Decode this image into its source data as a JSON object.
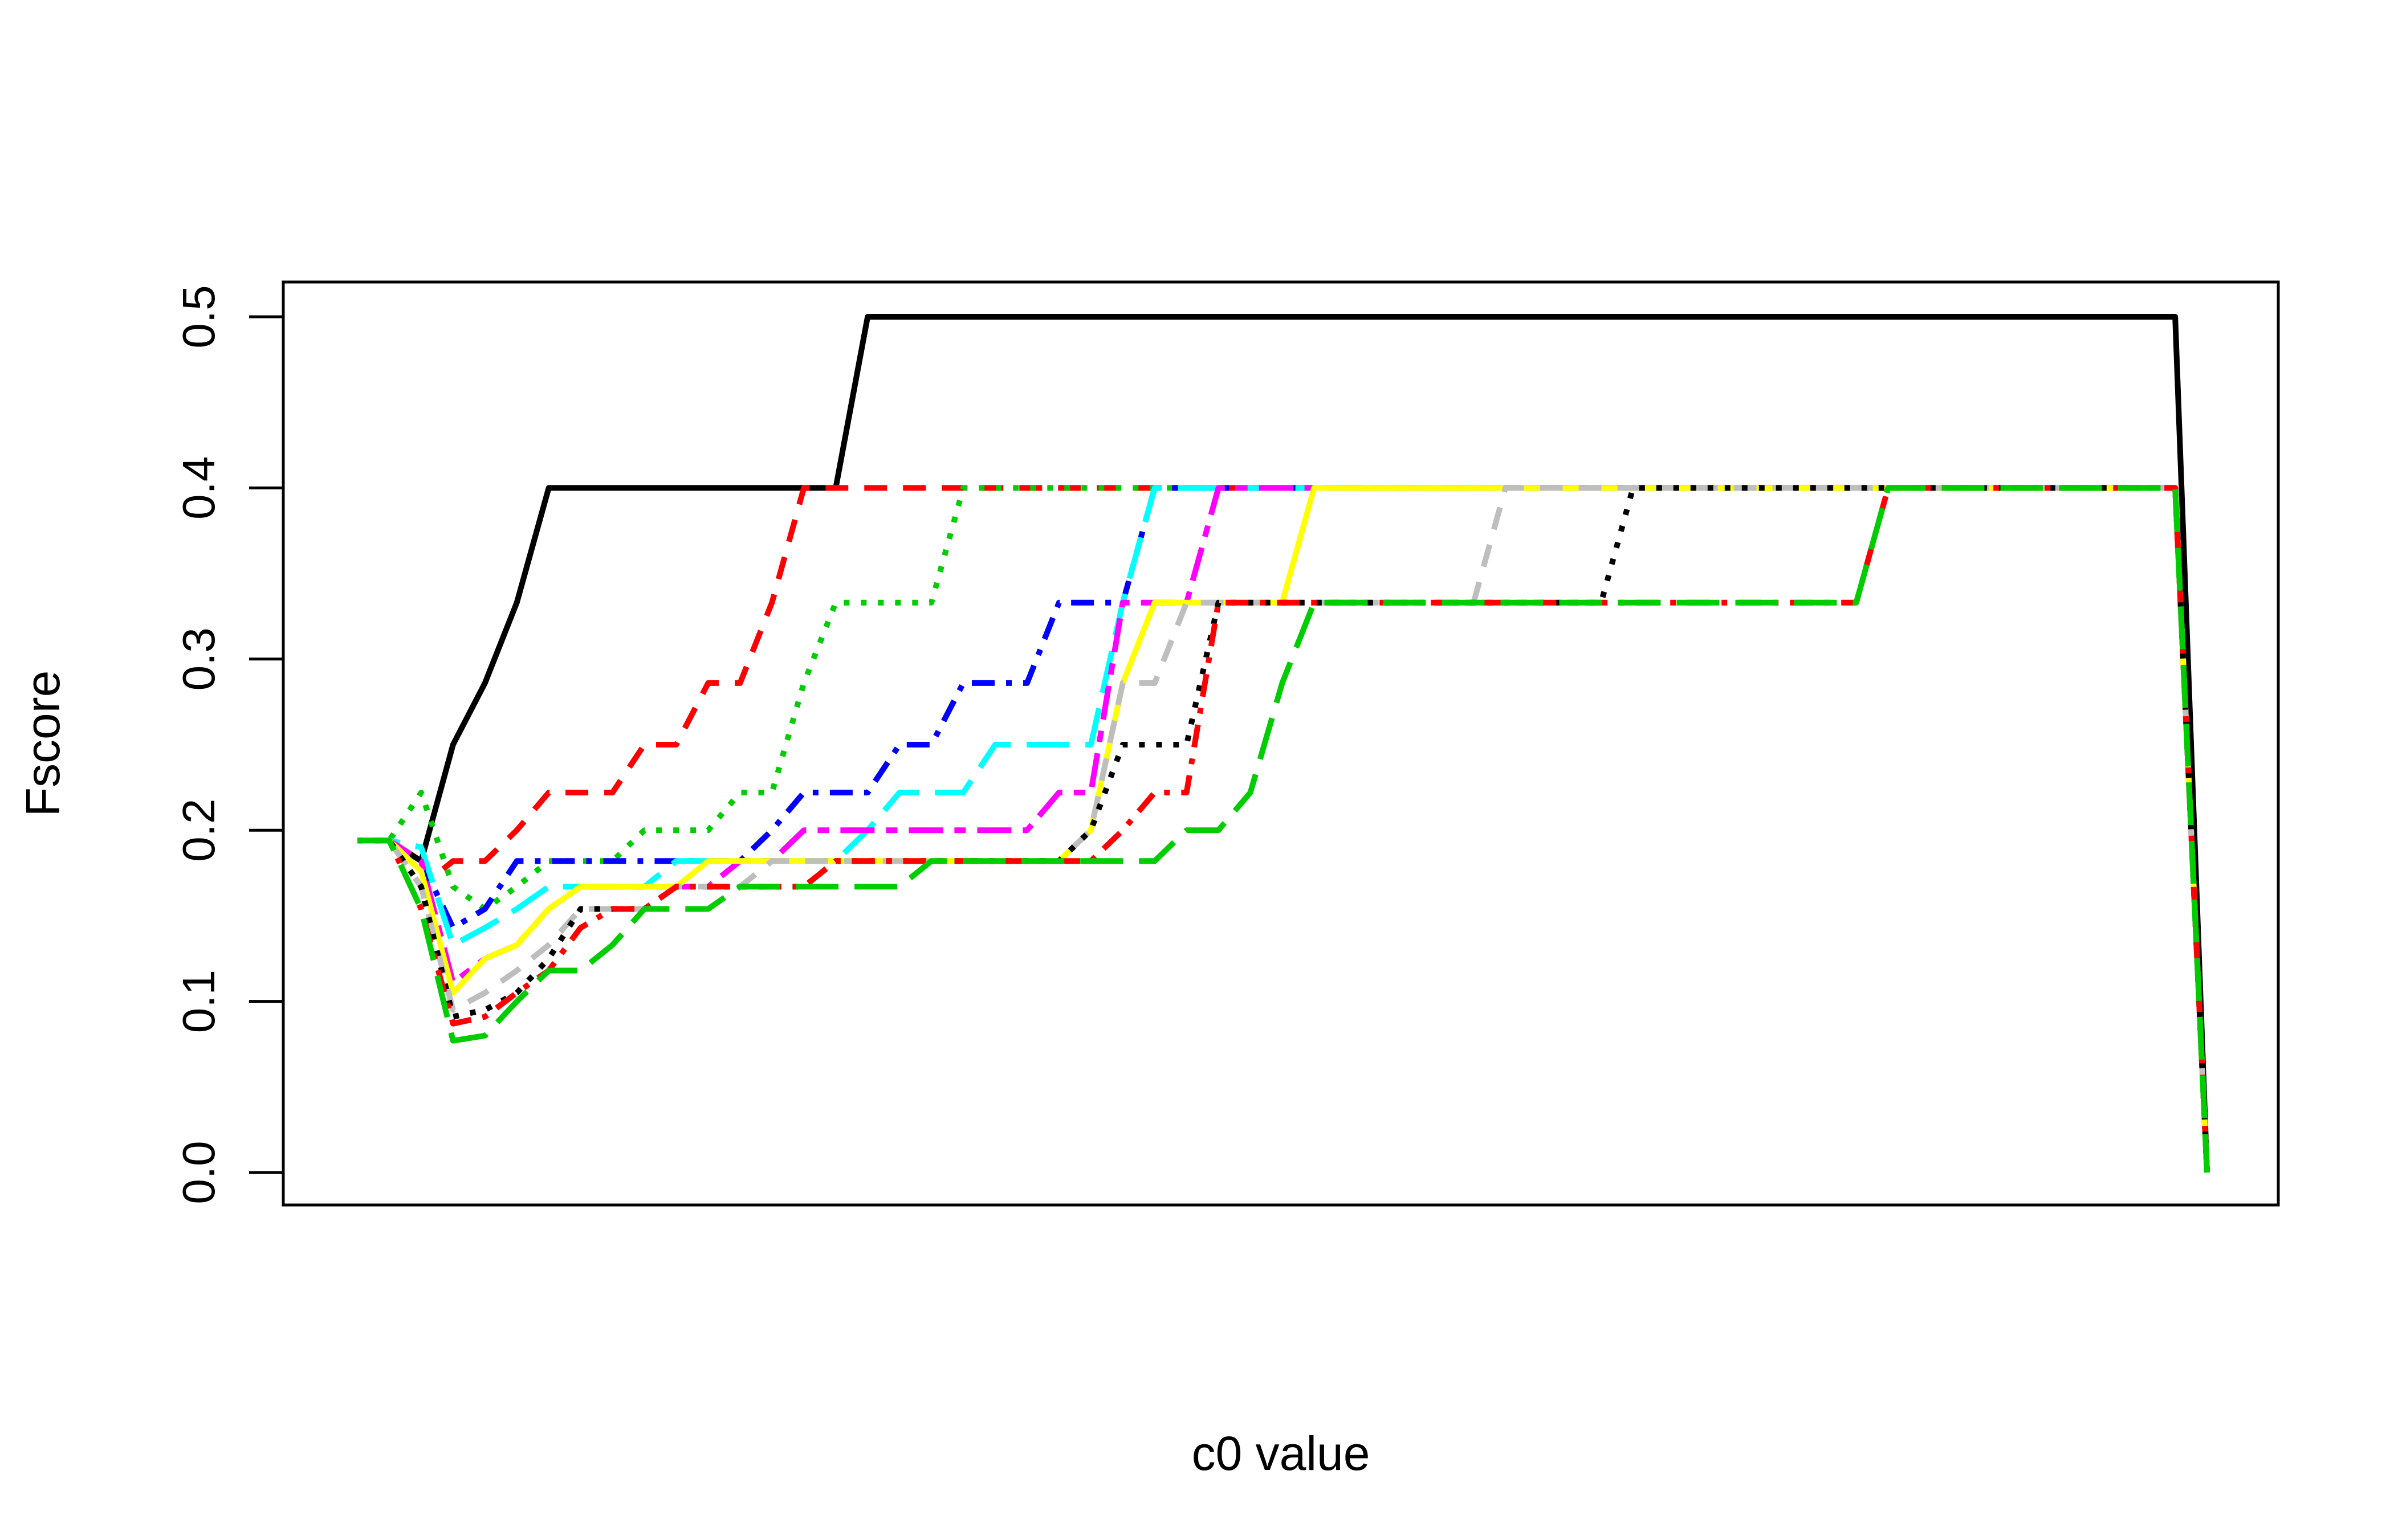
{
  "chart_data": {
    "type": "line",
    "title": "",
    "xlabel": "c0 value",
    "ylabel": "Fscore",
    "ylim": [
      0,
      0.5
    ],
    "yticks": [
      "0.0",
      "0.1",
      "0.2",
      "0.3",
      "0.4",
      "0.5"
    ],
    "x_tick_labels_shown": false,
    "grid": false,
    "legend": "none",
    "x": [
      1,
      2,
      3,
      4,
      5,
      6,
      7,
      8,
      9,
      10,
      11,
      12,
      13,
      14,
      15,
      16,
      17,
      18,
      19,
      20,
      21,
      22,
      23,
      24,
      25,
      26,
      27,
      28,
      29,
      30,
      31,
      32,
      33,
      34,
      35,
      36,
      37,
      38,
      39,
      40,
      41,
      42,
      43,
      44,
      45,
      46,
      47,
      48,
      49,
      50,
      51,
      52,
      53,
      54,
      55,
      56,
      57,
      58,
      59
    ],
    "series": [
      {
        "color": "#000000",
        "dash": "solid",
        "values": [
          0.194,
          0.194,
          0.182,
          0.25,
          0.286,
          0.333,
          0.4,
          0.4,
          0.4,
          0.4,
          0.4,
          0.4,
          0.4,
          0.4,
          0.4,
          0.4,
          0.5,
          0.5,
          0.5,
          0.5,
          0.5,
          0.5,
          0.5,
          0.5,
          0.5,
          0.5,
          0.5,
          0.5,
          0.5,
          0.5,
          0.5,
          0.5,
          0.5,
          0.5,
          0.5,
          0.5,
          0.5,
          0.5,
          0.5,
          0.5,
          0.5,
          0.5,
          0.5,
          0.5,
          0.5,
          0.5,
          0.5,
          0.5,
          0.5,
          0.5,
          0.5,
          0.5,
          0.5,
          0.5,
          0.5,
          0.5,
          0.5,
          0.5,
          0.0
        ]
      },
      {
        "color": "#ff0000",
        "dash": "dashed",
        "values": [
          0.194,
          0.194,
          0.167,
          0.182,
          0.182,
          0.2,
          0.222,
          0.222,
          0.222,
          0.25,
          0.25,
          0.286,
          0.286,
          0.333,
          0.4,
          0.4,
          0.4,
          0.4,
          0.4,
          0.4,
          0.4,
          0.4,
          0.4,
          0.4,
          0.4,
          0.4,
          0.4,
          0.4,
          0.4,
          0.4,
          0.4,
          0.4,
          0.4,
          0.4,
          0.4,
          0.4,
          0.4,
          0.4,
          0.4,
          0.4,
          0.4,
          0.4,
          0.4,
          0.4,
          0.4,
          0.4,
          0.4,
          0.4,
          0.4,
          0.4,
          0.4,
          0.4,
          0.4,
          0.4,
          0.4,
          0.4,
          0.4,
          0.4,
          0.0
        ]
      },
      {
        "color": "#00cd00",
        "dash": "dotted",
        "values": [
          0.194,
          0.194,
          0.222,
          0.167,
          0.154,
          0.167,
          0.182,
          0.182,
          0.182,
          0.2,
          0.2,
          0.2,
          0.222,
          0.222,
          0.286,
          0.333,
          0.333,
          0.333,
          0.333,
          0.4,
          0.4,
          0.4,
          0.4,
          0.4,
          0.4,
          0.4,
          0.4,
          0.4,
          0.4,
          0.4,
          0.4,
          0.4,
          0.4,
          0.4,
          0.4,
          0.4,
          0.4,
          0.4,
          0.4,
          0.4,
          0.4,
          0.4,
          0.4,
          0.4,
          0.4,
          0.4,
          0.4,
          0.4,
          0.4,
          0.4,
          0.4,
          0.4,
          0.4,
          0.4,
          0.4,
          0.4,
          0.4,
          0.4,
          0.0
        ]
      },
      {
        "color": "#0000ff",
        "dash": "dotdash",
        "values": [
          0.194,
          0.194,
          0.182,
          0.143,
          0.154,
          0.182,
          0.182,
          0.182,
          0.182,
          0.182,
          0.182,
          0.182,
          0.182,
          0.2,
          0.222,
          0.222,
          0.222,
          0.25,
          0.25,
          0.286,
          0.286,
          0.286,
          0.333,
          0.333,
          0.333,
          0.4,
          0.4,
          0.4,
          0.4,
          0.4,
          0.4,
          0.4,
          0.4,
          0.4,
          0.4,
          0.4,
          0.4,
          0.4,
          0.4,
          0.4,
          0.4,
          0.4,
          0.4,
          0.4,
          0.4,
          0.4,
          0.4,
          0.4,
          0.4,
          0.4,
          0.4,
          0.4,
          0.4,
          0.4,
          0.4,
          0.4,
          0.4,
          0.4,
          0.0
        ]
      },
      {
        "color": "#00ffff",
        "dash": "longdash",
        "values": [
          0.194,
          0.194,
          0.19,
          0.133,
          0.143,
          0.154,
          0.167,
          0.167,
          0.167,
          0.167,
          0.182,
          0.182,
          0.182,
          0.182,
          0.182,
          0.182,
          0.2,
          0.222,
          0.222,
          0.222,
          0.25,
          0.25,
          0.25,
          0.25,
          0.333,
          0.4,
          0.4,
          0.4,
          0.4,
          0.4,
          0.4,
          0.4,
          0.4,
          0.4,
          0.4,
          0.4,
          0.4,
          0.4,
          0.4,
          0.4,
          0.4,
          0.4,
          0.4,
          0.4,
          0.4,
          0.4,
          0.4,
          0.4,
          0.4,
          0.4,
          0.4,
          0.4,
          0.4,
          0.4,
          0.4,
          0.4,
          0.4,
          0.4,
          0.0
        ]
      },
      {
        "color": "#ff00ff",
        "dash": "twodash",
        "values": [
          0.194,
          0.194,
          0.182,
          0.111,
          0.125,
          0.133,
          0.154,
          0.167,
          0.167,
          0.167,
          0.167,
          0.167,
          0.182,
          0.182,
          0.2,
          0.2,
          0.2,
          0.2,
          0.2,
          0.2,
          0.2,
          0.2,
          0.222,
          0.222,
          0.333,
          0.333,
          0.333,
          0.4,
          0.4,
          0.4,
          0.4,
          0.4,
          0.4,
          0.4,
          0.4,
          0.4,
          0.4,
          0.4,
          0.4,
          0.4,
          0.4,
          0.4,
          0.4,
          0.4,
          0.4,
          0.4,
          0.4,
          0.4,
          0.4,
          0.4,
          0.4,
          0.4,
          0.4,
          0.4,
          0.4,
          0.4,
          0.4,
          0.4,
          0.0
        ]
      },
      {
        "color": "#ffff00",
        "dash": "solid",
        "values": [
          0.194,
          0.194,
          0.176,
          0.105,
          0.125,
          0.133,
          0.154,
          0.167,
          0.167,
          0.167,
          0.167,
          0.182,
          0.182,
          0.182,
          0.182,
          0.182,
          0.182,
          0.182,
          0.182,
          0.182,
          0.182,
          0.182,
          0.182,
          0.2,
          0.286,
          0.333,
          0.333,
          0.333,
          0.333,
          0.333,
          0.4,
          0.4,
          0.4,
          0.4,
          0.4,
          0.4,
          0.4,
          0.4,
          0.4,
          0.4,
          0.4,
          0.4,
          0.4,
          0.4,
          0.4,
          0.4,
          0.4,
          0.4,
          0.4,
          0.4,
          0.4,
          0.4,
          0.4,
          0.4,
          0.4,
          0.4,
          0.4,
          0.4,
          0.0
        ]
      },
      {
        "color": "#bebebe",
        "dash": "dashed",
        "values": [
          0.194,
          0.194,
          0.167,
          0.095,
          0.105,
          0.118,
          0.133,
          0.154,
          0.154,
          0.154,
          0.167,
          0.167,
          0.167,
          0.182,
          0.182,
          0.182,
          0.182,
          0.182,
          0.182,
          0.182,
          0.182,
          0.182,
          0.182,
          0.2,
          0.286,
          0.286,
          0.333,
          0.333,
          0.333,
          0.333,
          0.333,
          0.333,
          0.333,
          0.333,
          0.333,
          0.333,
          0.4,
          0.4,
          0.4,
          0.4,
          0.4,
          0.4,
          0.4,
          0.4,
          0.4,
          0.4,
          0.4,
          0.4,
          0.4,
          0.4,
          0.4,
          0.4,
          0.4,
          0.4,
          0.4,
          0.4,
          0.4,
          0.4,
          0.0
        ]
      },
      {
        "color": "#000000",
        "dash": "dotted",
        "values": [
          0.194,
          0.194,
          0.167,
          0.091,
          0.095,
          0.105,
          0.125,
          0.154,
          0.154,
          0.154,
          0.167,
          0.167,
          0.167,
          0.167,
          0.167,
          0.182,
          0.182,
          0.182,
          0.182,
          0.182,
          0.182,
          0.182,
          0.182,
          0.2,
          0.25,
          0.25,
          0.25,
          0.333,
          0.333,
          0.333,
          0.333,
          0.333,
          0.333,
          0.333,
          0.333,
          0.333,
          0.333,
          0.333,
          0.333,
          0.333,
          0.4,
          0.4,
          0.4,
          0.4,
          0.4,
          0.4,
          0.4,
          0.4,
          0.4,
          0.4,
          0.4,
          0.4,
          0.4,
          0.4,
          0.4,
          0.4,
          0.4,
          0.4,
          0.0
        ]
      },
      {
        "color": "#ff0000",
        "dash": "dotdash",
        "values": [
          0.194,
          0.194,
          0.154,
          0.087,
          0.091,
          0.105,
          0.118,
          0.143,
          0.154,
          0.154,
          0.167,
          0.167,
          0.167,
          0.167,
          0.167,
          0.182,
          0.182,
          0.182,
          0.182,
          0.182,
          0.182,
          0.182,
          0.182,
          0.182,
          0.2,
          0.222,
          0.222,
          0.333,
          0.333,
          0.333,
          0.333,
          0.333,
          0.333,
          0.333,
          0.333,
          0.333,
          0.333,
          0.333,
          0.333,
          0.333,
          0.333,
          0.333,
          0.333,
          0.333,
          0.333,
          0.333,
          0.333,
          0.333,
          0.4,
          0.4,
          0.4,
          0.4,
          0.4,
          0.4,
          0.4,
          0.4,
          0.4,
          0.4,
          0.0
        ]
      },
      {
        "color": "#00cd00",
        "dash": "longdash",
        "values": [
          0.194,
          0.194,
          0.154,
          0.077,
          0.08,
          0.1,
          0.118,
          0.118,
          0.133,
          0.154,
          0.154,
          0.154,
          0.167,
          0.167,
          0.167,
          0.167,
          0.167,
          0.167,
          0.182,
          0.182,
          0.182,
          0.182,
          0.182,
          0.182,
          0.182,
          0.182,
          0.2,
          0.2,
          0.222,
          0.286,
          0.333,
          0.333,
          0.333,
          0.333,
          0.333,
          0.333,
          0.333,
          0.333,
          0.333,
          0.333,
          0.333,
          0.333,
          0.333,
          0.333,
          0.333,
          0.333,
          0.333,
          0.333,
          0.4,
          0.4,
          0.4,
          0.4,
          0.4,
          0.4,
          0.4,
          0.4,
          0.4,
          0.4,
          0.0
        ]
      }
    ]
  }
}
